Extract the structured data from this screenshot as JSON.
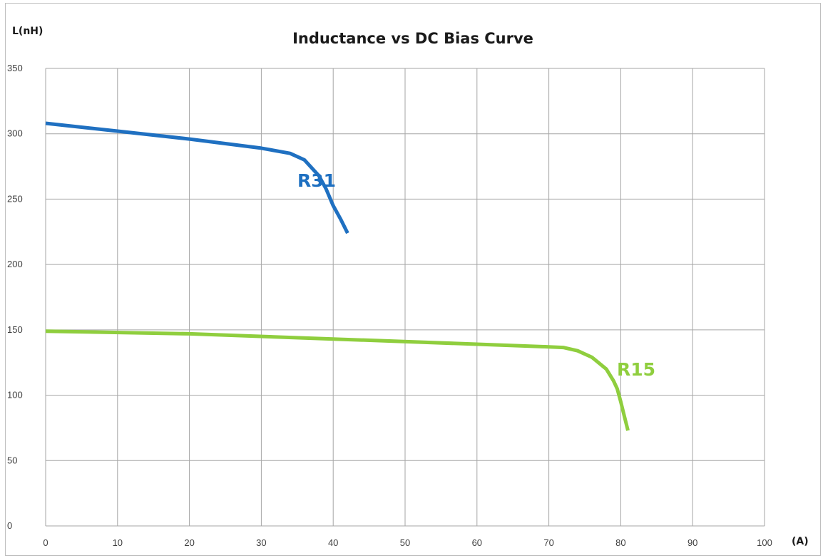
{
  "chart_data": {
    "type": "line",
    "title": "Inductance vs DC Bias Curve",
    "ylabel": "L(nH)",
    "xlabel": "(A)",
    "xlim": [
      0,
      100
    ],
    "ylim": [
      0,
      350
    ],
    "x_ticks": [
      0,
      10,
      20,
      30,
      40,
      50,
      60,
      70,
      80,
      90,
      100
    ],
    "y_ticks": [
      0,
      50,
      100,
      150,
      200,
      250,
      300,
      350
    ],
    "grid": true,
    "series": [
      {
        "name": "R31",
        "color": "#1f70c1",
        "x": [
          0,
          10,
          20,
          30,
          34,
          36,
          38,
          39,
          40,
          41,
          42
        ],
        "y": [
          308,
          302,
          296,
          289,
          285,
          280,
          268,
          258,
          245,
          235,
          224
        ]
      },
      {
        "name": "R15",
        "color": "#8fce3e",
        "x": [
          0,
          20,
          40,
          60,
          70,
          72,
          74,
          76,
          78,
          79,
          79.5,
          80,
          80.5,
          81
        ],
        "y": [
          149,
          147,
          143,
          139,
          137,
          136.5,
          134,
          129,
          120,
          111,
          105,
          95,
          84,
          73
        ]
      }
    ]
  }
}
